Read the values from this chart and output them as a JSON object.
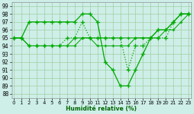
{
  "xlabel": "Humidité relative (%)",
  "bg_color": "#ceeee8",
  "grid_color": "#99cc99",
  "line_color": "#00aa00",
  "x_ticks": [
    0,
    1,
    2,
    3,
    4,
    5,
    6,
    7,
    8,
    9,
    10,
    11,
    12,
    13,
    14,
    15,
    16,
    17,
    18,
    19,
    20,
    21,
    22,
    23
  ],
  "y_ticks": [
    88,
    89,
    90,
    91,
    92,
    93,
    94,
    95,
    96,
    97,
    98,
    99
  ],
  "xlim": [
    -0.3,
    23.3
  ],
  "ylim": [
    87.5,
    99.5
  ],
  "series": [
    {
      "x": [
        0,
        1,
        2,
        3,
        4,
        5,
        6,
        7,
        8,
        9,
        10,
        11,
        12,
        13,
        14,
        15,
        16,
        17,
        18,
        19,
        20,
        21,
        22,
        23
      ],
      "y": [
        95,
        95,
        97,
        97,
        97,
        97,
        97,
        97,
        97,
        98,
        98,
        97,
        92,
        91,
        89,
        89,
        91,
        93,
        95,
        96,
        96,
        97,
        98,
        98
      ],
      "marker": "+",
      "linestyle": "-",
      "markersize": 4,
      "linewidth": 1.0
    },
    {
      "x": [
        0,
        1,
        2,
        3,
        4,
        5,
        6,
        7,
        8,
        9,
        10,
        11,
        12,
        13,
        14,
        15,
        16,
        17,
        18,
        19,
        20,
        21,
        22,
        23
      ],
      "y": [
        95,
        95,
        94,
        94,
        94,
        94,
        94,
        95,
        95,
        97,
        95,
        95,
        95,
        95,
        95,
        91,
        94,
        94,
        95,
        95,
        95,
        97,
        98,
        98
      ],
      "marker": "+",
      "linestyle": "dotted",
      "markersize": 4,
      "linewidth": 1.0
    },
    {
      "x": [
        0,
        1,
        2,
        3,
        4,
        5,
        6,
        7,
        8,
        9,
        10,
        11,
        12,
        13,
        14,
        15,
        16,
        17,
        18,
        19,
        20,
        21,
        22,
        23
      ],
      "y": [
        95,
        95,
        94,
        94,
        94,
        94,
        94,
        94,
        95,
        95,
        95,
        95,
        95,
        95,
        95,
        95,
        95,
        95,
        95,
        96,
        96,
        97,
        98,
        98
      ],
      "marker": "+",
      "linestyle": "-",
      "markersize": 3,
      "linewidth": 0.8
    },
    {
      "x": [
        0,
        1,
        2,
        3,
        4,
        5,
        6,
        7,
        8,
        9,
        10,
        11,
        12,
        13,
        14,
        15,
        16,
        17,
        18,
        19,
        20,
        21,
        22,
        23
      ],
      "y": [
        95,
        95,
        94,
        94,
        94,
        94,
        94,
        94,
        94,
        95,
        95,
        94,
        94,
        94,
        94,
        94,
        95,
        95,
        95,
        95,
        96,
        96,
        97,
        98
      ],
      "marker": "+",
      "linestyle": "-",
      "markersize": 3,
      "linewidth": 0.8
    }
  ]
}
